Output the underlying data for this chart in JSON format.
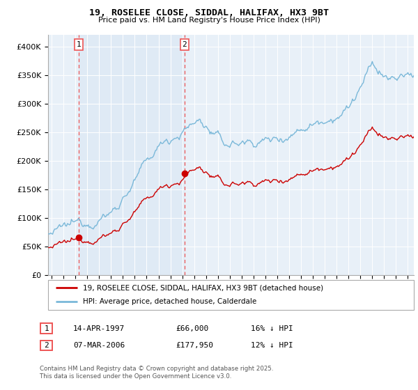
{
  "title": "19, ROSELEE CLOSE, SIDDAL, HALIFAX, HX3 9BT",
  "subtitle": "Price paid vs. HM Land Registry's House Price Index (HPI)",
  "legend_line1": "19, ROSELEE CLOSE, SIDDAL, HALIFAX, HX3 9BT (detached house)",
  "legend_line2": "HPI: Average price, detached house, Calderdale",
  "footer": "Contains HM Land Registry data © Crown copyright and database right 2025.\nThis data is licensed under the Open Government Licence v3.0.",
  "transaction1_label": "1",
  "transaction1_date": "14-APR-1997",
  "transaction1_price": "£66,000",
  "transaction1_hpi": "16% ↓ HPI",
  "transaction1_year": 1997.29,
  "transaction1_value": 66000,
  "transaction2_label": "2",
  "transaction2_date": "07-MAR-2006",
  "transaction2_price": "£177,950",
  "transaction2_hpi": "12% ↓ HPI",
  "transaction2_year": 2006.18,
  "transaction2_value": 177950,
  "hpi_color": "#7ab8d9",
  "price_color": "#cc0000",
  "vline_color": "#ee5555",
  "dot_color": "#cc0000",
  "shade_color": "#dce8f4",
  "background_color": "#e8f0f8",
  "ylim": [
    0,
    420000
  ],
  "xlim_start": 1994.7,
  "xlim_end": 2025.5,
  "ytick_values": [
    0,
    50000,
    100000,
    150000,
    200000,
    250000,
    300000,
    350000,
    400000
  ],
  "xtick_years": [
    1995,
    1996,
    1997,
    1998,
    1999,
    2000,
    2001,
    2002,
    2003,
    2004,
    2005,
    2006,
    2007,
    2008,
    2009,
    2010,
    2011,
    2012,
    2013,
    2014,
    2015,
    2016,
    2017,
    2018,
    2019,
    2020,
    2021,
    2022,
    2023,
    2024,
    2025
  ]
}
